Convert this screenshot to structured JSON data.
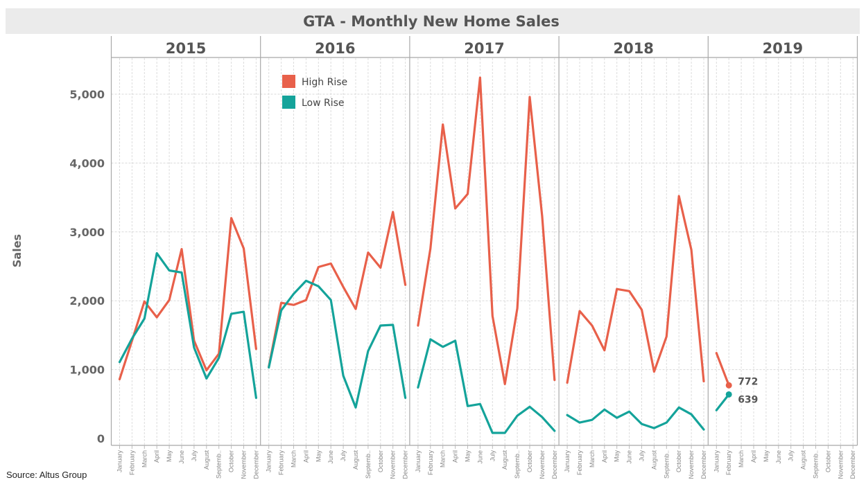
{
  "source_note": "Source: Altus Group",
  "chart_data": {
    "type": "line",
    "title": "GTA - Monthly New Home Sales",
    "ylabel": "Sales",
    "xlabel": "",
    "ylim": [
      0,
      5500
    ],
    "yticks": [
      0,
      1000,
      2000,
      3000,
      4000,
      5000
    ],
    "ytick_labels": [
      "0",
      "1,000",
      "2,000",
      "3,000",
      "4,000",
      "5,000"
    ],
    "panels": [
      "2015",
      "2016",
      "2017",
      "2018",
      "2019"
    ],
    "months": [
      "January",
      "February",
      "March",
      "April",
      "May",
      "June",
      "July",
      "August",
      "Septemb..",
      "October",
      "November",
      "December"
    ],
    "grid": true,
    "legend_placement": "top-left of 2016 panel",
    "series": [
      {
        "name": "High Rise",
        "color": "#e8604a",
        "values": [
          [
            860,
            1420,
            1990,
            1760,
            2010,
            2750,
            1420,
            990,
            1230,
            3200,
            2760,
            1300
          ],
          [
            1040,
            1970,
            1940,
            2010,
            2490,
            2540,
            2200,
            1880,
            2700,
            2480,
            3290,
            2230
          ],
          [
            1640,
            2760,
            4560,
            3340,
            3550,
            5240,
            1780,
            790,
            1890,
            4960,
            3230,
            850
          ],
          [
            810,
            1850,
            1640,
            1280,
            2170,
            2140,
            1870,
            970,
            1480,
            3520,
            2740,
            830
          ],
          [
            1240,
            772,
            null,
            null,
            null,
            null,
            null,
            null,
            null,
            null,
            null,
            null
          ]
        ]
      },
      {
        "name": "Low Rise",
        "color": "#14a39a",
        "values": [
          [
            1110,
            1450,
            1740,
            2690,
            2440,
            2410,
            1320,
            870,
            1170,
            1810,
            1840,
            590
          ],
          [
            1030,
            1860,
            2100,
            2290,
            2210,
            2010,
            910,
            450,
            1270,
            1640,
            1650,
            590
          ],
          [
            740,
            1440,
            1330,
            1420,
            470,
            500,
            80,
            80,
            330,
            460,
            310,
            110
          ],
          [
            340,
            230,
            270,
            420,
            300,
            390,
            210,
            150,
            230,
            450,
            350,
            130
          ],
          [
            410,
            639,
            null,
            null,
            null,
            null,
            null,
            null,
            null,
            null,
            null,
            null
          ]
        ]
      }
    ],
    "end_labels": [
      {
        "series": "High Rise",
        "text": "772"
      },
      {
        "series": "Low Rise",
        "text": "639"
      }
    ]
  }
}
